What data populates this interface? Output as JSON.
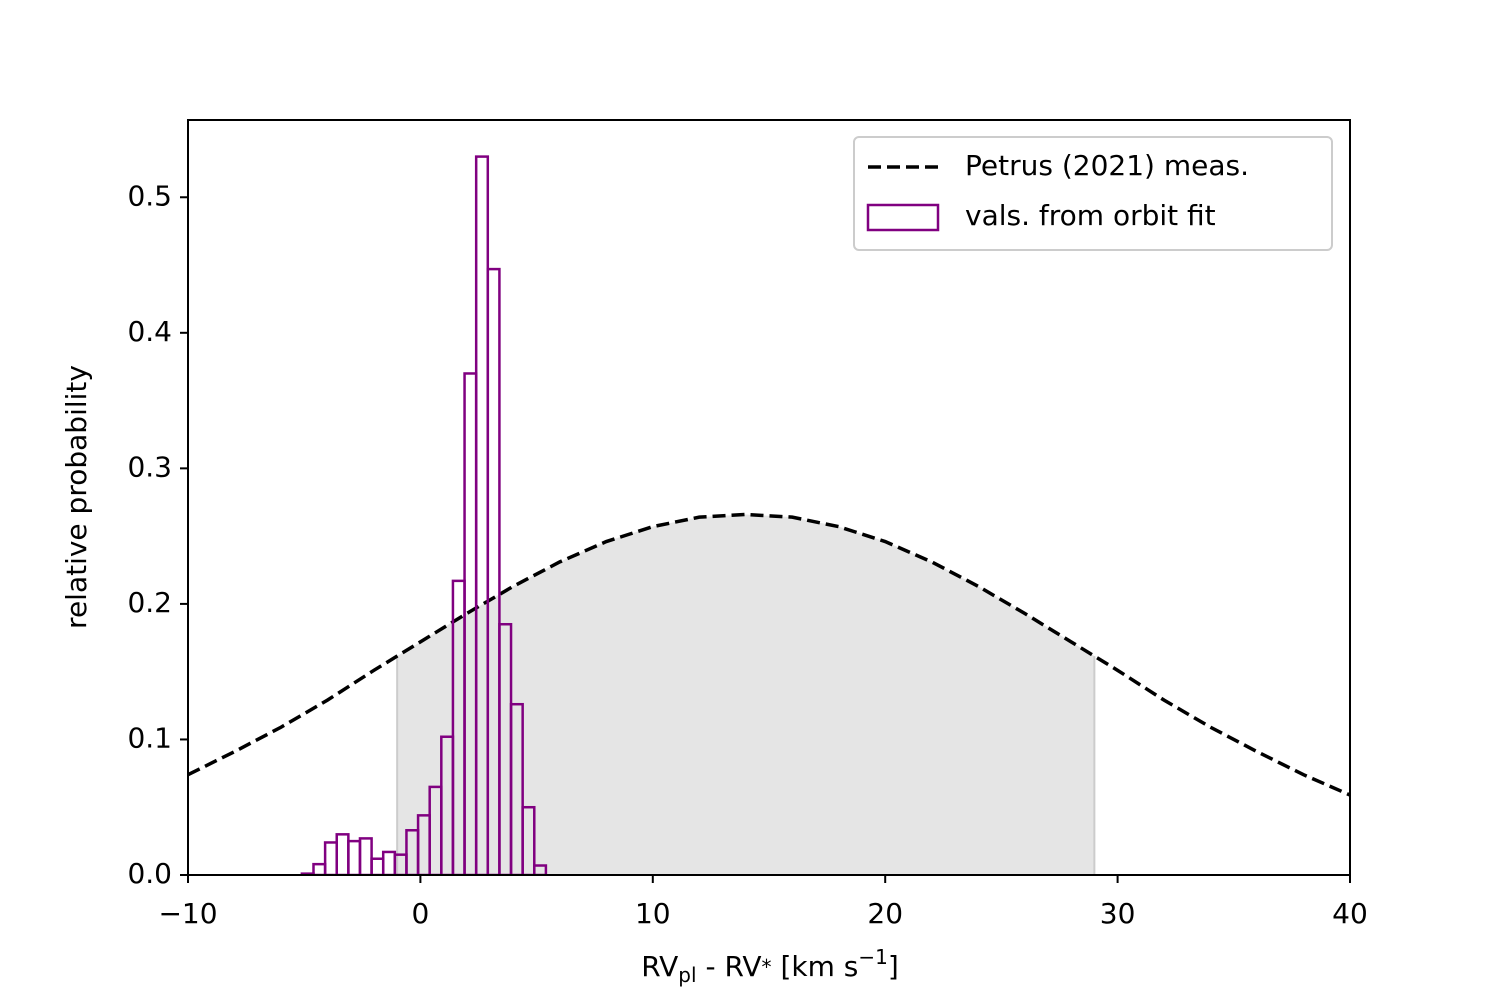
{
  "chart_data": {
    "type": "histogram",
    "xlabel_parts": [
      "RV",
      "pl",
      " - RV",
      "*",
      " [km s",
      "−1",
      "]"
    ],
    "ylabel": "relative probability",
    "xlim": [
      -10,
      40
    ],
    "ylim": [
      0,
      0.557
    ],
    "xticks": [
      {
        "value": -10,
        "label": "−10"
      },
      0,
      10,
      20,
      30,
      40
    ],
    "yticks": [
      {
        "value": 0,
        "label": "0.0"
      },
      0.1,
      0.2,
      0.3,
      0.4,
      0.5
    ],
    "legend": "upper right",
    "shade": {
      "range": [
        -1,
        29
      ],
      "color": "#e5e5e5",
      "edge": "#cccccc"
    },
    "series": [
      {
        "name": "Petrus (2021) meas.",
        "type": "line",
        "color": "#000000",
        "dashed": true,
        "x": [
          -10,
          -8,
          -6,
          -4,
          -2,
          0,
          2,
          4,
          6,
          8,
          10,
          12,
          14,
          16,
          18,
          20,
          22,
          24,
          26,
          28,
          30,
          32,
          34,
          36,
          38,
          40
        ],
        "values": [
          0.074,
          0.091,
          0.109,
          0.129,
          0.151,
          0.172,
          0.193,
          0.213,
          0.231,
          0.246,
          0.257,
          0.264,
          0.266,
          0.264,
          0.257,
          0.246,
          0.231,
          0.213,
          0.193,
          0.172,
          0.151,
          0.129,
          0.109,
          0.091,
          0.074,
          0.059
        ]
      },
      {
        "name": "vals. from orbit fit",
        "type": "histogram",
        "color": "#800080",
        "bins": [
          -5.1,
          -4.6,
          -4.1,
          -3.6,
          -3.1,
          -2.6,
          -2.1,
          -1.6,
          -1.1,
          -0.6,
          -0.1,
          0.4,
          0.9,
          1.4,
          1.9,
          2.4,
          2.9,
          3.4,
          3.9,
          4.4,
          4.9,
          5.4
        ],
        "values": [
          0.001,
          0.008,
          0.024,
          0.03,
          0.025,
          0.027,
          0.012,
          0.017,
          0.015,
          0.033,
          0.044,
          0.065,
          0.102,
          0.217,
          0.37,
          0.53,
          0.447,
          0.185,
          0.126,
          0.05,
          0.007
        ]
      }
    ]
  }
}
